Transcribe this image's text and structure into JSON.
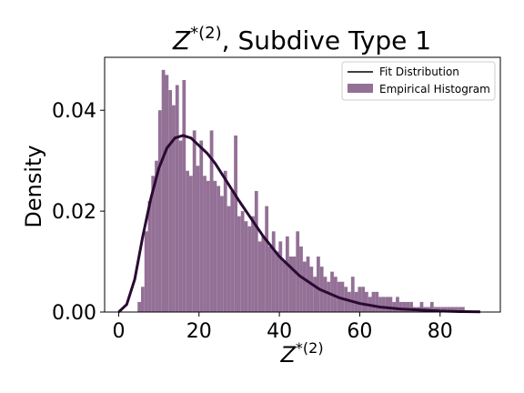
{
  "chart_data": {
    "type": "bar",
    "title_base": "Z",
    "title_sup": "*(2)",
    "title_rest": ", Subdive Type 1",
    "xlabel_base": "Z",
    "xlabel_sup": "*(2)",
    "ylabel": "Density",
    "xlim": [
      -3.5,
      95
    ],
    "ylim": [
      0,
      0.0505
    ],
    "xticks": [
      0,
      20,
      40,
      60,
      80
    ],
    "yticks": [
      0.0,
      0.02,
      0.04
    ],
    "ytick_labels": [
      "0.00",
      "0.02",
      "0.04"
    ],
    "legend": {
      "placement": "top-right",
      "line_label": "Fit Distribution",
      "hist_label": "Empirical Histogram"
    },
    "colors": {
      "histogram": "#937096",
      "fit_line": "#2a0a33"
    },
    "histogram": {
      "series_name": "Empirical Histogram",
      "bin_width": 0.857,
      "bin_start": 4.7,
      "values": [
        0.002,
        0.005,
        0.016,
        0.022,
        0.027,
        0.03,
        0.04,
        0.048,
        0.047,
        0.044,
        0.041,
        0.045,
        0.034,
        0.046,
        0.028,
        0.027,
        0.036,
        0.029,
        0.034,
        0.027,
        0.026,
        0.036,
        0.026,
        0.025,
        0.023,
        0.028,
        0.021,
        0.024,
        0.035,
        0.019,
        0.02,
        0.018,
        0.017,
        0.019,
        0.024,
        0.014,
        0.015,
        0.021,
        0.013,
        0.016,
        0.012,
        0.014,
        0.01,
        0.015,
        0.011,
        0.011,
        0.016,
        0.013,
        0.01,
        0.011,
        0.009,
        0.007,
        0.011,
        0.009,
        0.007,
        0.006,
        0.008,
        0.007,
        0.006,
        0.006,
        0.005,
        0.004,
        0.007,
        0.004,
        0.005,
        0.005,
        0.004,
        0.003,
        0.004,
        0.004,
        0.003,
        0.003,
        0.003,
        0.003,
        0.002,
        0.003,
        0.002,
        0.002,
        0.002,
        0.002,
        0.001,
        0.001,
        0.002,
        0.001,
        0.001,
        0.002,
        0.001,
        0.001,
        0.001,
        0.001,
        0.001,
        0.001,
        0.001,
        0.001,
        0.001
      ]
    },
    "fit_curve": {
      "series_name": "Fit Distribution",
      "x": [
        0,
        2,
        4,
        6,
        8,
        10,
        12,
        14,
        16,
        18,
        20,
        22,
        24,
        26,
        28,
        30,
        33,
        36,
        40,
        45,
        50,
        55,
        60,
        65,
        70,
        75,
        80,
        85,
        90
      ],
      "y": [
        0.0,
        0.0015,
        0.0065,
        0.015,
        0.0225,
        0.0285,
        0.0325,
        0.0345,
        0.035,
        0.0345,
        0.033,
        0.0315,
        0.0295,
        0.027,
        0.0245,
        0.022,
        0.0185,
        0.015,
        0.011,
        0.0072,
        0.0045,
        0.0028,
        0.0017,
        0.001,
        0.0006,
        0.0004,
        0.0002,
        0.0001,
        5e-05
      ]
    }
  }
}
